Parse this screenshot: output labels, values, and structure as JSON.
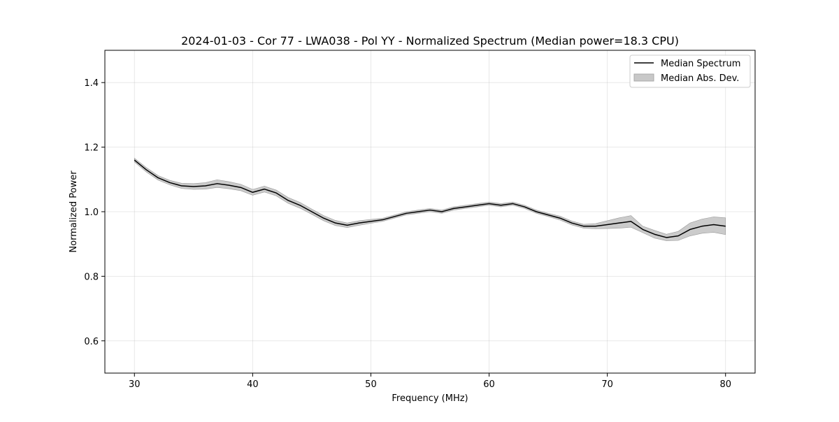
{
  "chart_data": {
    "type": "line",
    "title": "2024-01-03 - Cor 77 - LWA038 - Pol YY - Normalized Spectrum (Median power=18.3 CPU)",
    "xlabel": "Frequency (MHz)",
    "ylabel": "Normalized Power",
    "xlim": [
      27.5,
      82.5
    ],
    "ylim": [
      0.5,
      1.5
    ],
    "xticks": [
      30,
      40,
      50,
      60,
      70,
      80
    ],
    "yticks": [
      0.6,
      0.8,
      1.0,
      1.2,
      1.4
    ],
    "xtick_labels": [
      "30",
      "40",
      "50",
      "60",
      "70",
      "80"
    ],
    "ytick_labels": [
      "0.6",
      "0.8",
      "1.0",
      "1.2",
      "1.4"
    ],
    "grid": true,
    "legend_position": "top-right",
    "series": [
      {
        "name": "Median Spectrum",
        "kind": "line",
        "color": "#000000",
        "x": [
          30,
          31,
          32,
          33,
          34,
          35,
          36,
          37,
          38,
          39,
          40,
          41,
          42,
          43,
          44,
          45,
          46,
          47,
          48,
          49,
          50,
          51,
          52,
          53,
          54,
          55,
          56,
          57,
          58,
          59,
          60,
          61,
          62,
          63,
          64,
          65,
          66,
          67,
          68,
          69,
          70,
          71,
          72,
          73,
          74,
          75,
          76,
          77,
          78,
          79,
          80
        ],
        "y": [
          1.16,
          1.13,
          1.105,
          1.09,
          1.08,
          1.078,
          1.08,
          1.087,
          1.082,
          1.075,
          1.06,
          1.07,
          1.058,
          1.035,
          1.02,
          1.0,
          0.98,
          0.965,
          0.958,
          0.965,
          0.97,
          0.975,
          0.985,
          0.995,
          1.0,
          1.005,
          1.0,
          1.01,
          1.015,
          1.02,
          1.025,
          1.02,
          1.025,
          1.015,
          1.0,
          0.99,
          0.98,
          0.965,
          0.955,
          0.955,
          0.96,
          0.965,
          0.97,
          0.945,
          0.93,
          0.92,
          0.925,
          0.945,
          0.955,
          0.96,
          0.955
        ]
      },
      {
        "name": "Median Abs. Dev.",
        "kind": "band",
        "color": "#c8c8c8",
        "x": [
          30,
          31,
          32,
          33,
          34,
          35,
          36,
          37,
          38,
          39,
          40,
          41,
          42,
          43,
          44,
          45,
          46,
          47,
          48,
          49,
          50,
          51,
          52,
          53,
          54,
          55,
          56,
          57,
          58,
          59,
          60,
          61,
          62,
          63,
          64,
          65,
          66,
          67,
          68,
          69,
          70,
          71,
          72,
          73,
          74,
          75,
          76,
          77,
          78,
          79,
          80
        ],
        "mad": [
          0.006,
          0.007,
          0.007,
          0.007,
          0.008,
          0.009,
          0.01,
          0.012,
          0.011,
          0.01,
          0.009,
          0.009,
          0.009,
          0.009,
          0.009,
          0.008,
          0.008,
          0.008,
          0.007,
          0.007,
          0.006,
          0.005,
          0.005,
          0.005,
          0.005,
          0.005,
          0.005,
          0.005,
          0.005,
          0.005,
          0.005,
          0.005,
          0.005,
          0.005,
          0.005,
          0.005,
          0.006,
          0.006,
          0.006,
          0.008,
          0.012,
          0.016,
          0.018,
          0.01,
          0.012,
          0.01,
          0.014,
          0.02,
          0.022,
          0.024,
          0.026
        ]
      }
    ]
  },
  "legend": {
    "line_label": "Median Spectrum",
    "band_label": "Median Abs. Dev."
  }
}
